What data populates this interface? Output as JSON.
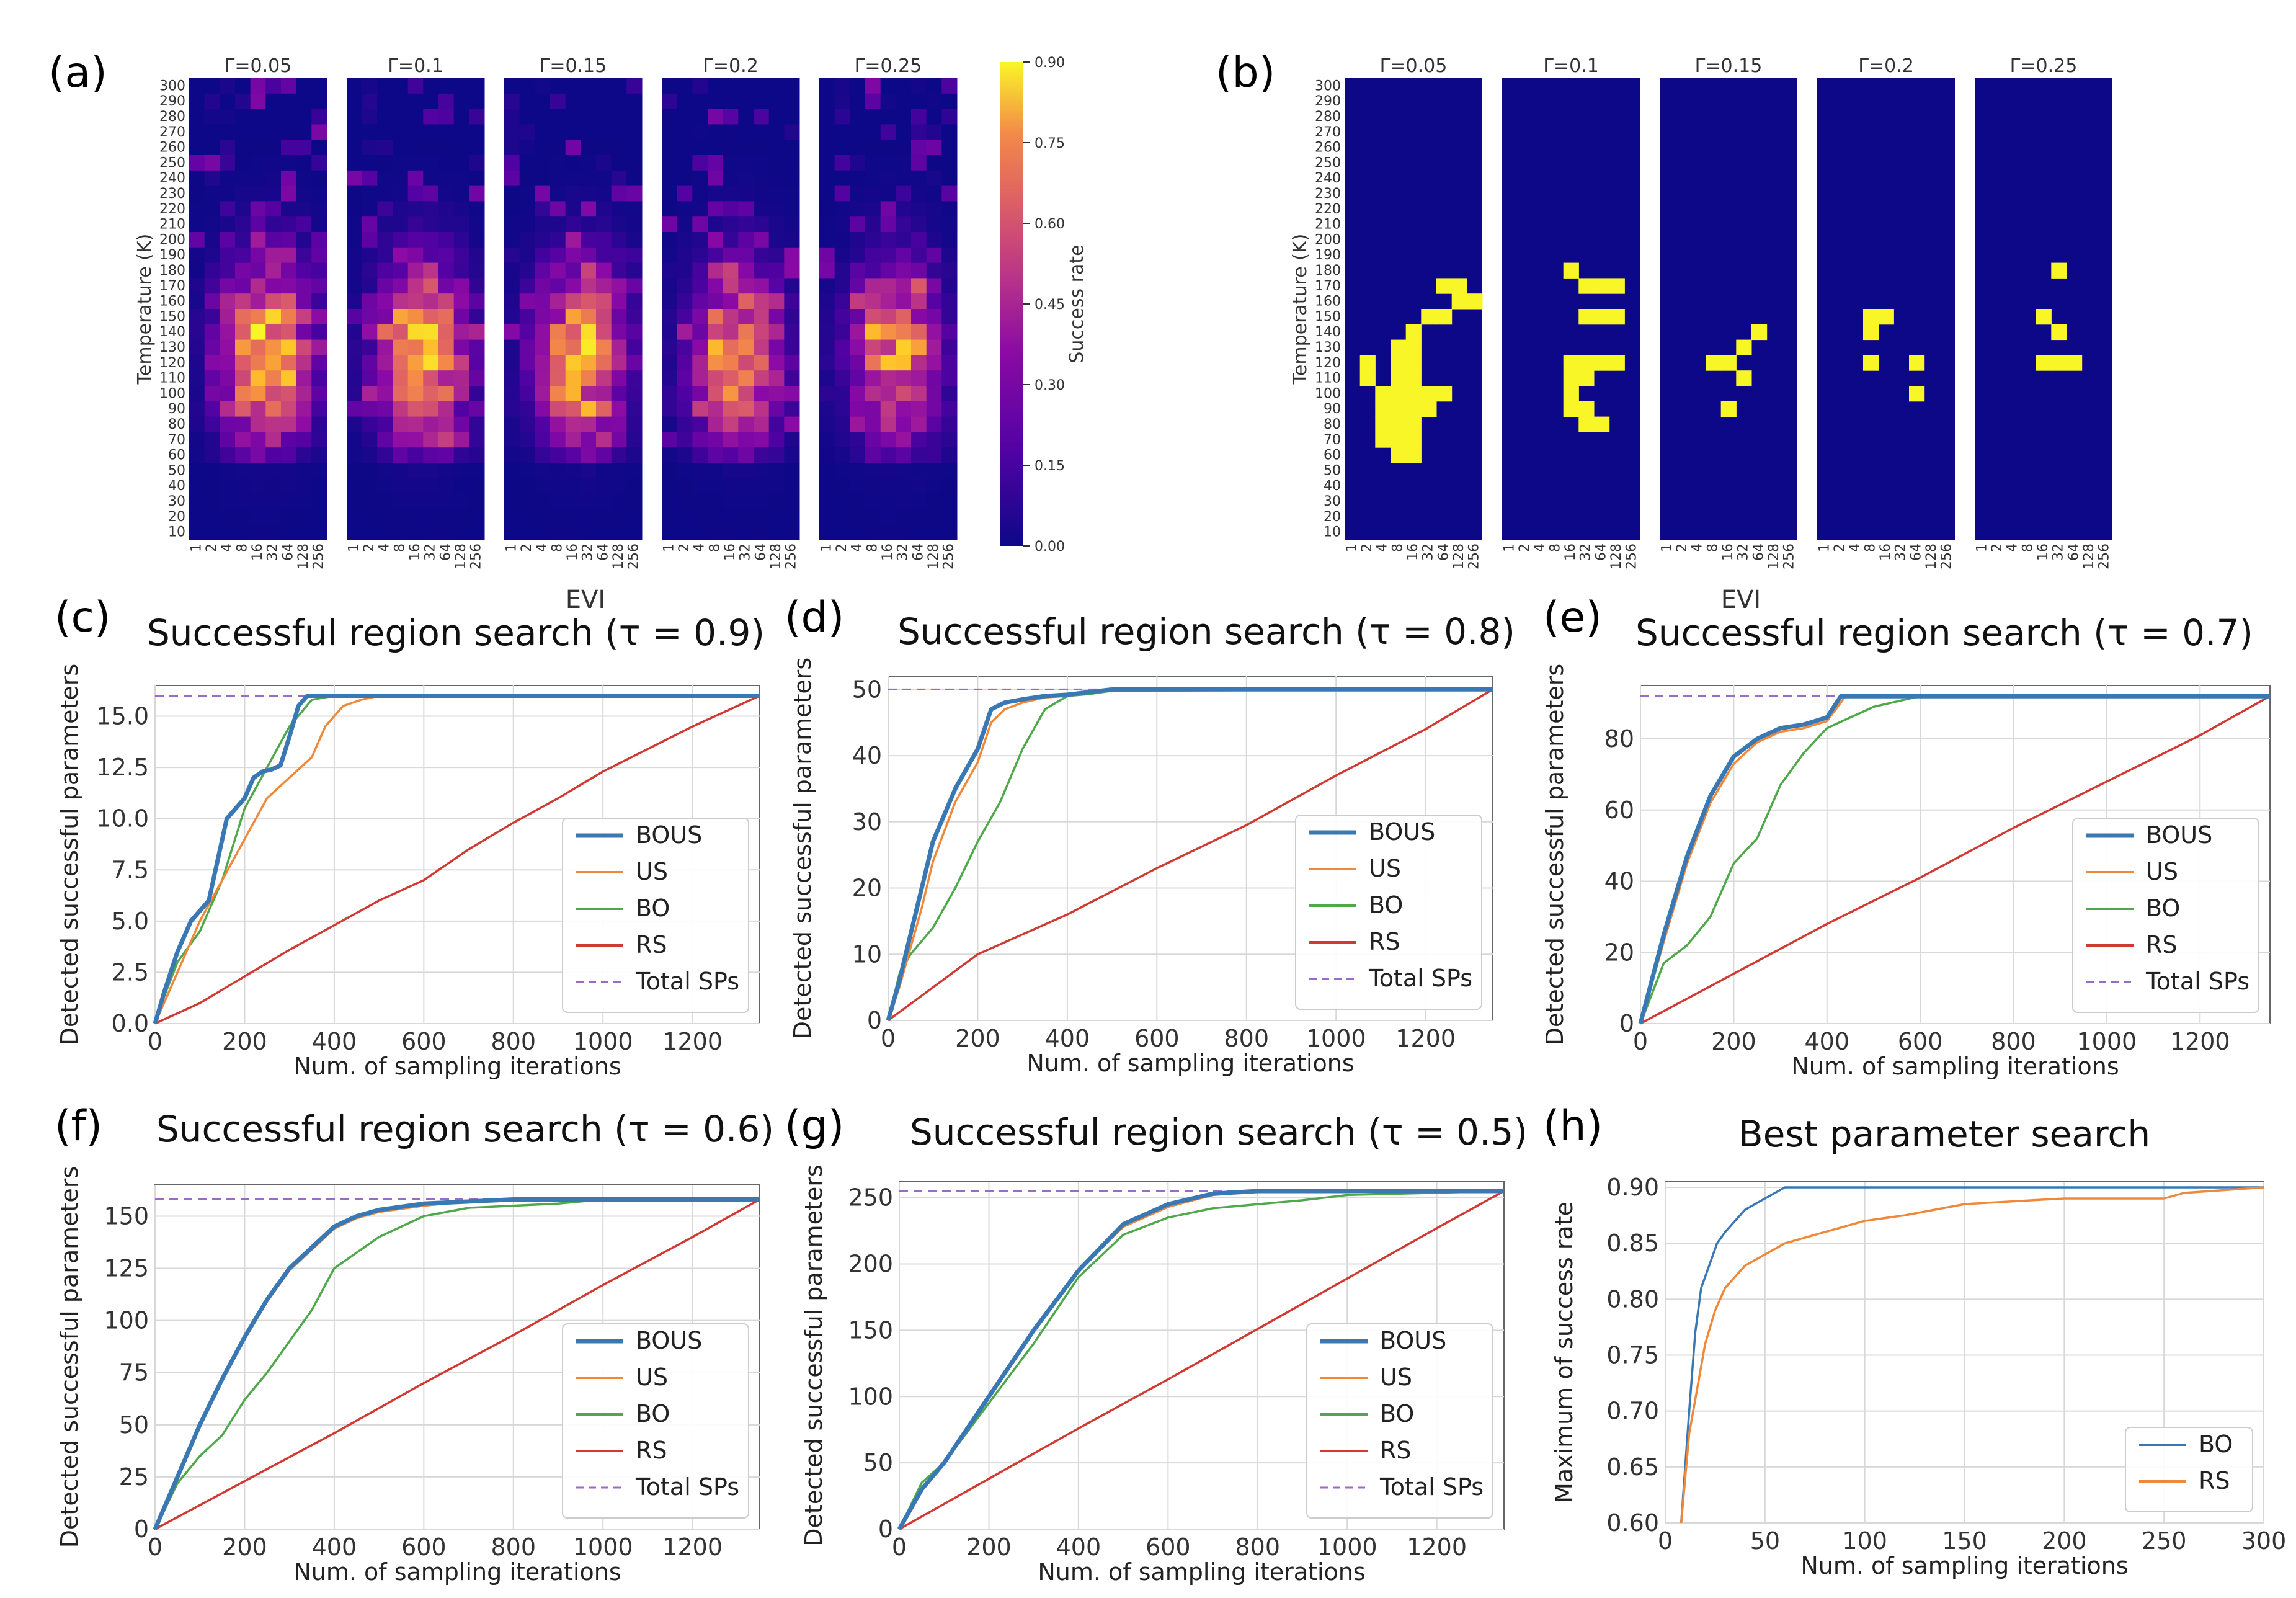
{
  "colors": {
    "bous": "#3a78b4",
    "us": "#f0883a",
    "bo": "#4fa84a",
    "rs": "#d03a32",
    "total": "#9b6ac6",
    "heat_low": "#0d0887",
    "heat_high": "#f9f628",
    "bo_h": "#3a78b4",
    "rs_h": "#f0883a"
  },
  "heatmap_a": {
    "label": "(a)",
    "gammas": [
      "Γ=0.05",
      "Γ=0.1",
      "Γ=0.15",
      "Γ=0.2",
      "Γ=0.25"
    ],
    "ylabel": "Temperature (K)",
    "xlabel": "EVI",
    "y_ticks": [
      "300",
      "290",
      "280",
      "270",
      "260",
      "250",
      "240",
      "230",
      "220",
      "210",
      "200",
      "190",
      "180",
      "170",
      "160",
      "150",
      "140",
      "130",
      "120",
      "110",
      "100",
      "90",
      "80",
      "70",
      "60",
      "50",
      "40",
      "30",
      "20",
      "10"
    ],
    "x_ticks": [
      "1",
      "2",
      "4",
      "8",
      "16",
      "32",
      "64",
      "128",
      "256"
    ],
    "colorbar_label": "Success rate",
    "colorbar_ticks": [
      "0.90",
      "0.75",
      "0.60",
      "0.45",
      "0.30",
      "0.15",
      "0.00"
    ]
  },
  "heatmap_b": {
    "label": "(b)",
    "gammas": [
      "Γ=0.05",
      "Γ=0.1",
      "Γ=0.15",
      "Γ=0.2",
      "Γ=0.25"
    ],
    "ylabel": "Temperature (K)",
    "xlabel": "EVI",
    "y_ticks": [
      "300",
      "290",
      "280",
      "270",
      "260",
      "250",
      "240",
      "230",
      "220",
      "210",
      "200",
      "190",
      "180",
      "170",
      "160",
      "150",
      "140",
      "130",
      "120",
      "110",
      "100",
      "90",
      "80",
      "70",
      "60",
      "50",
      "40",
      "30",
      "20",
      "10"
    ],
    "x_ticks": [
      "1",
      "2",
      "4",
      "8",
      "16",
      "32",
      "64",
      "128",
      "256"
    ]
  },
  "legend": {
    "bous": "BOUS",
    "us": "US",
    "bo": "BO",
    "rs": "RS",
    "total": "Total SPs"
  },
  "chart_data": [
    {
      "id": "c",
      "label": "(c)",
      "type": "line",
      "title": "Successful region search (τ = 0.9)",
      "xlabel": "Num. of sampling iterations",
      "ylabel": "Detected successful parameters",
      "xlim": [
        0,
        1350
      ],
      "ylim": [
        0,
        16.5
      ],
      "total": 16,
      "xticks": [
        0,
        200,
        400,
        600,
        800,
        1000,
        1200
      ],
      "xtick_labels": [
        "0",
        "200",
        "400",
        "600",
        "800",
        "1000",
        "1200"
      ],
      "yticks": [
        0,
        2.5,
        5,
        7.5,
        10,
        12.5,
        15
      ],
      "ytick_labels": [
        "0.0",
        "2.5",
        "5.0",
        "7.5",
        "10.0",
        "12.5",
        "15.0"
      ],
      "series": [
        {
          "name": "BOUS",
          "key": "bous",
          "x": [
            0,
            20,
            50,
            80,
            100,
            120,
            140,
            160,
            180,
            200,
            220,
            240,
            260,
            280,
            300,
            320,
            340,
            360,
            1350
          ],
          "y": [
            0,
            1.5,
            3.5,
            5,
            5.5,
            6,
            8,
            10,
            10.5,
            11,
            12,
            12.3,
            12.4,
            12.6,
            14,
            15.5,
            16,
            16,
            16
          ]
        },
        {
          "name": "US",
          "key": "us",
          "x": [
            0,
            20,
            50,
            100,
            150,
            200,
            250,
            300,
            350,
            380,
            420,
            460,
            500,
            1350
          ],
          "y": [
            0,
            1,
            2.5,
            5,
            7,
            9,
            11,
            12,
            13,
            14.5,
            15.5,
            15.8,
            16,
            16
          ]
        },
        {
          "name": "BO",
          "key": "bo",
          "x": [
            0,
            20,
            50,
            100,
            150,
            200,
            250,
            300,
            350,
            400,
            1350
          ],
          "y": [
            0,
            1.3,
            3,
            4.5,
            7,
            10.5,
            12.5,
            14.5,
            15.8,
            16,
            16
          ]
        },
        {
          "name": "RS",
          "key": "rs",
          "x": [
            0,
            100,
            200,
            300,
            400,
            500,
            600,
            700,
            800,
            900,
            1000,
            1100,
            1200,
            1350
          ],
          "y": [
            0,
            1,
            2.3,
            3.6,
            4.8,
            6,
            7,
            8.5,
            9.8,
            11,
            12.3,
            13.4,
            14.5,
            16
          ]
        }
      ]
    },
    {
      "id": "d",
      "label": "(d)",
      "type": "line",
      "title": "Successful region search (τ = 0.8)",
      "xlabel": "Num. of sampling iterations",
      "ylabel": "Detected successful parameters",
      "xlim": [
        0,
        1350
      ],
      "ylim": [
        0,
        52
      ],
      "total": 50,
      "xticks": [
        0,
        200,
        400,
        600,
        800,
        1000,
        1200
      ],
      "xtick_labels": [
        "0",
        "200",
        "400",
        "600",
        "800",
        "1000",
        "1200"
      ],
      "yticks": [
        0,
        10,
        20,
        30,
        40,
        50
      ],
      "ytick_labels": [
        "0",
        "10",
        "20",
        "30",
        "40",
        "50"
      ],
      "series": [
        {
          "name": "BOUS",
          "key": "bous",
          "x": [
            0,
            25,
            50,
            75,
            100,
            150,
            200,
            230,
            260,
            300,
            350,
            400,
            500,
            1350
          ],
          "y": [
            0,
            6,
            13,
            20,
            27,
            35,
            41,
            47,
            48,
            48.5,
            49,
            49.2,
            50,
            50
          ]
        },
        {
          "name": "US",
          "key": "us",
          "x": [
            0,
            25,
            50,
            75,
            100,
            150,
            200,
            230,
            260,
            300,
            350,
            400,
            500,
            1350
          ],
          "y": [
            0,
            5,
            11,
            17,
            24,
            33,
            39,
            45,
            47,
            48,
            48.8,
            49,
            50,
            50
          ]
        },
        {
          "name": "BO",
          "key": "bo",
          "x": [
            0,
            25,
            50,
            100,
            150,
            200,
            250,
            300,
            350,
            400,
            450,
            500,
            1350
          ],
          "y": [
            0,
            7,
            10,
            14,
            20,
            27,
            33,
            41,
            47,
            49,
            49.3,
            49.8,
            50
          ]
        },
        {
          "name": "RS",
          "key": "rs",
          "x": [
            0,
            200,
            400,
            600,
            800,
            1000,
            1200,
            1350
          ],
          "y": [
            0,
            10,
            16,
            23,
            29.5,
            37,
            44,
            50
          ]
        }
      ]
    },
    {
      "id": "e",
      "label": "(e)",
      "type": "line",
      "title": "Successful region search (τ = 0.7)",
      "xlabel": "Num. of sampling iterations",
      "ylabel": "Detected successful parameters",
      "xlim": [
        0,
        1350
      ],
      "ylim": [
        0,
        95
      ],
      "total": 92,
      "xticks": [
        0,
        200,
        400,
        600,
        800,
        1000,
        1200
      ],
      "xtick_labels": [
        "0",
        "200",
        "400",
        "600",
        "800",
        "1000",
        "1200"
      ],
      "yticks": [
        0,
        20,
        40,
        60,
        80
      ],
      "ytick_labels": [
        "0",
        "20",
        "40",
        "60",
        "80"
      ],
      "series": [
        {
          "name": "BOUS",
          "key": "bous",
          "x": [
            0,
            50,
            100,
            150,
            200,
            250,
            300,
            350,
            400,
            430,
            1350
          ],
          "y": [
            0,
            25,
            47,
            64,
            75,
            80,
            83,
            84,
            86,
            92,
            92
          ]
        },
        {
          "name": "US",
          "key": "us",
          "x": [
            0,
            50,
            100,
            150,
            200,
            250,
            300,
            350,
            400,
            440,
            1350
          ],
          "y": [
            0,
            23,
            45,
            62,
            73,
            79,
            82,
            83,
            85,
            92,
            92
          ]
        },
        {
          "name": "BO",
          "key": "bo",
          "x": [
            0,
            50,
            100,
            150,
            200,
            250,
            300,
            350,
            400,
            450,
            500,
            600,
            1350
          ],
          "y": [
            0,
            17,
            22,
            30,
            45,
            52,
            67,
            76,
            83,
            86,
            89,
            92,
            92
          ]
        },
        {
          "name": "RS",
          "key": "rs",
          "x": [
            0,
            200,
            400,
            600,
            800,
            1000,
            1200,
            1350
          ],
          "y": [
            0,
            14,
            28,
            41,
            55,
            68,
            81,
            92
          ]
        }
      ]
    },
    {
      "id": "f",
      "label": "(f)",
      "type": "line",
      "title": "Successful region search (τ = 0.6)",
      "xlabel": "Num. of sampling iterations",
      "ylabel": "Detected successful parameters",
      "xlim": [
        0,
        1350
      ],
      "ylim": [
        0,
        165
      ],
      "total": 158,
      "xticks": [
        0,
        200,
        400,
        600,
        800,
        1000,
        1200
      ],
      "xtick_labels": [
        "0",
        "200",
        "400",
        "600",
        "800",
        "1000",
        "1200"
      ],
      "yticks": [
        0,
        25,
        50,
        75,
        100,
        125,
        150
      ],
      "ytick_labels": [
        "0",
        "25",
        "50",
        "75",
        "100",
        "125",
        "150"
      ],
      "series": [
        {
          "name": "BOUS",
          "key": "bous",
          "x": [
            0,
            50,
            100,
            150,
            200,
            250,
            300,
            350,
            400,
            450,
            500,
            600,
            700,
            800,
            1350
          ],
          "y": [
            0,
            25,
            50,
            72,
            92,
            110,
            125,
            135,
            145,
            150,
            153,
            156,
            157,
            158,
            158
          ]
        },
        {
          "name": "US",
          "key": "us",
          "x": [
            0,
            50,
            100,
            150,
            200,
            250,
            300,
            350,
            400,
            450,
            500,
            600,
            700,
            800,
            1350
          ],
          "y": [
            0,
            24,
            49,
            71,
            91,
            109,
            124,
            134,
            144,
            149,
            152,
            155,
            157,
            158,
            158
          ]
        },
        {
          "name": "BO",
          "key": "bo",
          "x": [
            0,
            50,
            100,
            150,
            200,
            250,
            300,
            350,
            400,
            500,
            600,
            700,
            800,
            900,
            1000,
            1350
          ],
          "y": [
            0,
            22,
            35,
            45,
            62,
            75,
            90,
            105,
            125,
            140,
            150,
            154,
            155,
            156,
            158,
            158
          ]
        },
        {
          "name": "RS",
          "key": "rs",
          "x": [
            0,
            200,
            400,
            600,
            800,
            1000,
            1200,
            1350
          ],
          "y": [
            0,
            23,
            46,
            70,
            93,
            117,
            140,
            158
          ]
        }
      ]
    },
    {
      "id": "g",
      "label": "(g)",
      "type": "line",
      "title": "Successful region search (τ = 0.5)",
      "xlabel": "Num. of sampling iterations",
      "ylabel": "Detected successful parameters",
      "xlim": [
        0,
        1350
      ],
      "ylim": [
        0,
        262
      ],
      "total": 255,
      "xticks": [
        0,
        200,
        400,
        600,
        800,
        1000,
        1200
      ],
      "xtick_labels": [
        "0",
        "200",
        "400",
        "600",
        "800",
        "1000",
        "1200"
      ],
      "yticks": [
        0,
        50,
        100,
        150,
        200,
        250
      ],
      "ytick_labels": [
        "0",
        "50",
        "100",
        "150",
        "200",
        "250"
      ],
      "series": [
        {
          "name": "BOUS",
          "key": "bous",
          "x": [
            0,
            50,
            100,
            200,
            300,
            400,
            500,
            600,
            700,
            800,
            1350
          ],
          "y": [
            0,
            30,
            50,
            100,
            150,
            195,
            230,
            245,
            253,
            255,
            255
          ]
        },
        {
          "name": "US",
          "key": "us",
          "x": [
            0,
            50,
            100,
            200,
            300,
            400,
            500,
            600,
            700,
            800,
            1350
          ],
          "y": [
            0,
            30,
            50,
            100,
            150,
            195,
            228,
            243,
            252,
            255,
            255
          ]
        },
        {
          "name": "BO",
          "key": "bo",
          "x": [
            0,
            50,
            100,
            200,
            300,
            400,
            500,
            600,
            700,
            800,
            900,
            1000,
            1350
          ],
          "y": [
            0,
            35,
            50,
            95,
            140,
            190,
            222,
            235,
            242,
            245,
            248,
            252,
            255
          ]
        },
        {
          "name": "RS",
          "key": "rs",
          "x": [
            0,
            200,
            400,
            600,
            800,
            1000,
            1200,
            1350
          ],
          "y": [
            0,
            38,
            76,
            113,
            151,
            189,
            227,
            255
          ]
        }
      ]
    },
    {
      "id": "h",
      "label": "(h)",
      "type": "line",
      "title": "Best parameter search",
      "xlabel": "Num. of sampling iterations",
      "ylabel": "Maximum of success rate",
      "xlim": [
        0,
        300
      ],
      "ylim": [
        0.6,
        0.905
      ],
      "xticks": [
        0,
        50,
        100,
        150,
        200,
        250,
        300
      ],
      "xtick_labels": [
        "0",
        "50",
        "100",
        "150",
        "200",
        "250",
        "300"
      ],
      "yticks": [
        0.6,
        0.65,
        0.7,
        0.75,
        0.8,
        0.85,
        0.9
      ],
      "ytick_labels": [
        "0.60",
        "0.65",
        "0.70",
        "0.75",
        "0.80",
        "0.85",
        "0.90"
      ],
      "series": [
        {
          "name": "BO",
          "key": "bo_h",
          "x": [
            8,
            12,
            15,
            18,
            22,
            26,
            30,
            35,
            40,
            50,
            60,
            70,
            300
          ],
          "y": [
            0.6,
            0.7,
            0.77,
            0.81,
            0.83,
            0.85,
            0.86,
            0.87,
            0.88,
            0.89,
            0.9,
            0.9,
            0.9
          ]
        },
        {
          "name": "RS",
          "key": "rs_h",
          "x": [
            8,
            12,
            15,
            20,
            25,
            30,
            40,
            50,
            60,
            80,
            100,
            120,
            150,
            200,
            250,
            260,
            300
          ],
          "y": [
            0.6,
            0.68,
            0.71,
            0.76,
            0.79,
            0.81,
            0.83,
            0.84,
            0.85,
            0.86,
            0.87,
            0.875,
            0.885,
            0.89,
            0.89,
            0.895,
            0.9
          ]
        }
      ]
    }
  ]
}
